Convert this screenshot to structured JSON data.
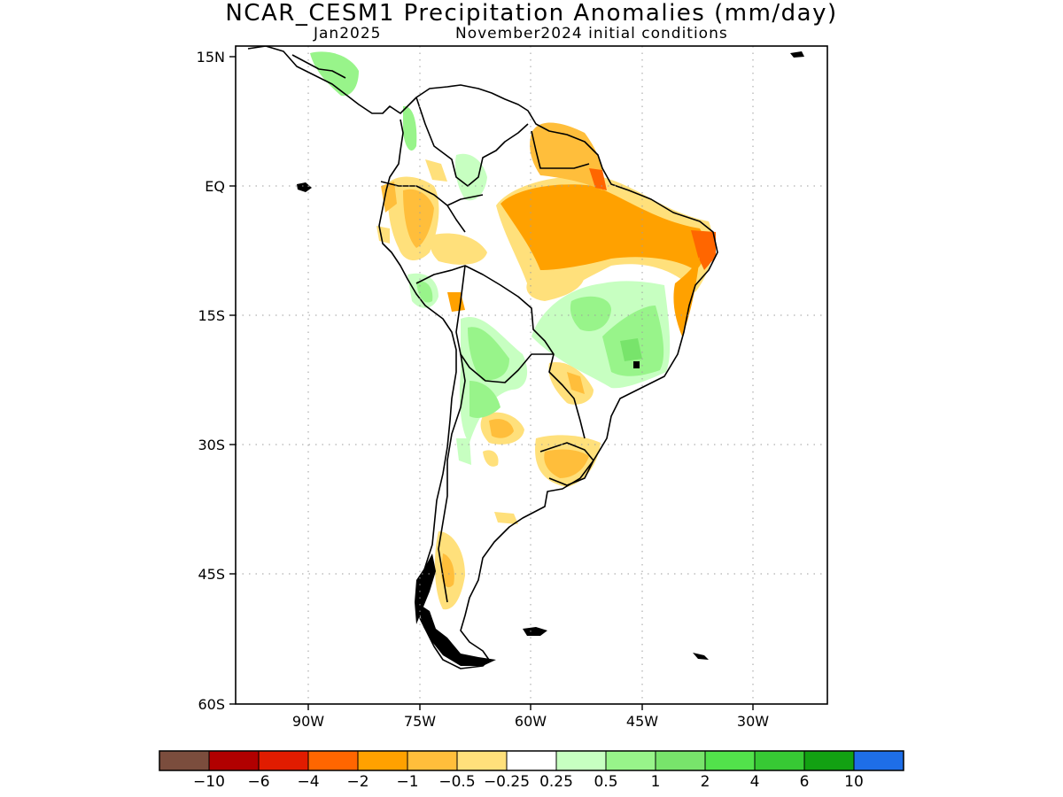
{
  "title": "NCAR_CESM1 Precipitation Anomalies (mm/day)",
  "valid_month": "Jan2025",
  "init_conditions": "November2024 initial conditions",
  "map": {
    "lat_ticks": [
      "15N",
      "EQ",
      "15S",
      "30S",
      "45S",
      "60S"
    ],
    "lon_ticks": [
      "90W",
      "75W",
      "60W",
      "45W",
      "30W"
    ]
  },
  "colorbar": {
    "colors": [
      "#7b4d3d",
      "#b10000",
      "#e11c00",
      "#ff6600",
      "#ffa100",
      "#ffbe3b",
      "#ffe07b",
      "#ffffff",
      "#c7ffc1",
      "#98f48a",
      "#78e46b",
      "#52e24b",
      "#37c934",
      "#12a112",
      "#1e6ee8"
    ],
    "labels": [
      "−10",
      "−6",
      "−4",
      "−2",
      "−1",
      "−0.5",
      "−0.25",
      "0.25",
      "0.5",
      "1",
      "2",
      "4",
      "6",
      "10"
    ]
  }
}
